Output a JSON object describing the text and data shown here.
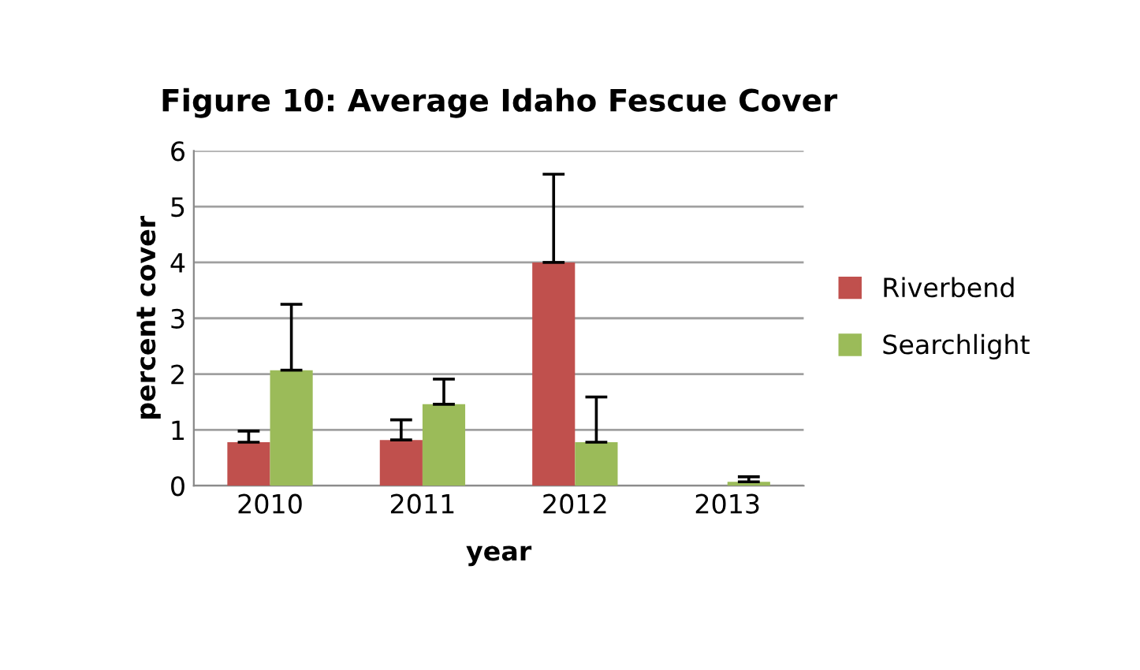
{
  "chart_data": {
    "type": "bar",
    "title": "Figure 10: Average Idaho Fescue Cover",
    "xlabel": "year",
    "ylabel": "percent cover",
    "categories": [
      "2010",
      "2011",
      "2012",
      "2013"
    ],
    "series": [
      {
        "name": "Riverbend",
        "color": "#c0504d",
        "values": [
          0.78,
          0.82,
          4.0,
          0
        ],
        "errors": [
          [
            0.78,
            0.98
          ],
          [
            0.82,
            1.18
          ],
          [
            4.0,
            5.58
          ],
          null
        ]
      },
      {
        "name": "Searchlight",
        "color": "#9bbb59",
        "values": [
          2.07,
          1.46,
          0.78,
          0.07
        ],
        "errors": [
          [
            2.07,
            3.25
          ],
          [
            1.46,
            1.91
          ],
          [
            0.78,
            1.59
          ],
          [
            0.07,
            0.16
          ]
        ]
      }
    ],
    "ylim": [
      0,
      6
    ],
    "yticks": [
      0,
      1,
      2,
      3,
      4,
      5,
      6
    ],
    "grid": "y",
    "legend": "right"
  }
}
